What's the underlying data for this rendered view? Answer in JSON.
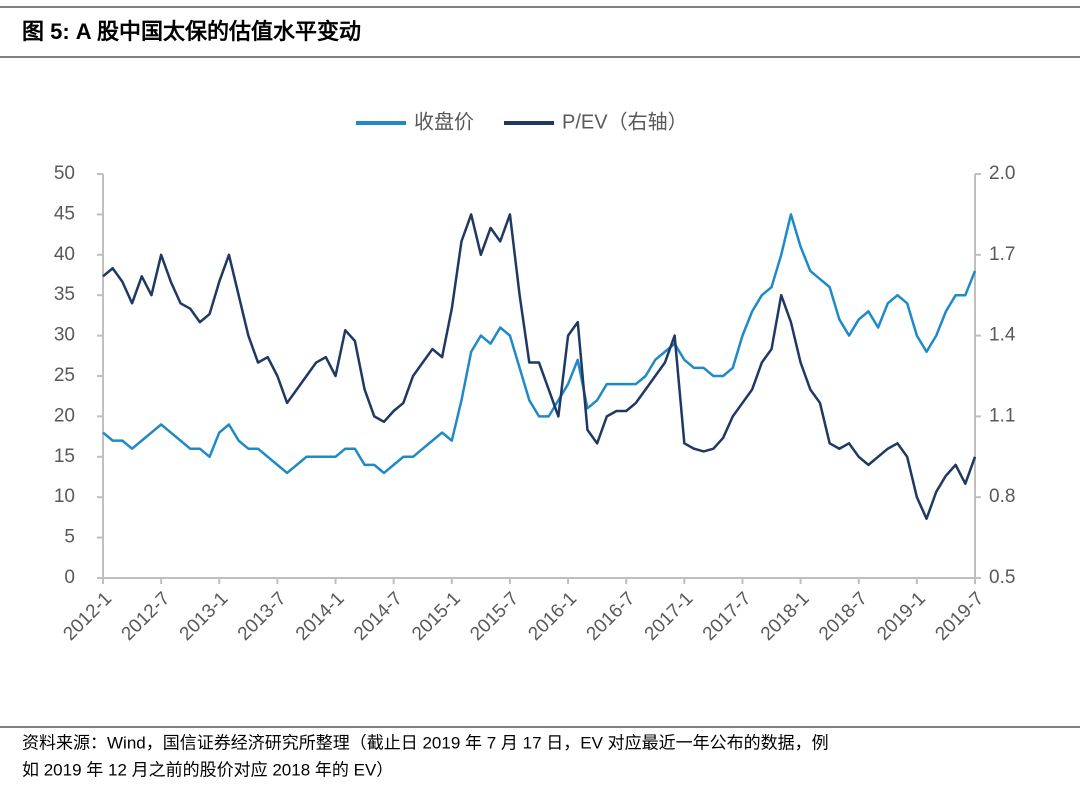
{
  "header": {
    "title": "图 5:  A 股中国太保的估值水平变动"
  },
  "chart_data": {
    "type": "line",
    "categories": [
      "2012-1",
      null,
      null,
      null,
      null,
      null,
      "2012-7",
      null,
      null,
      null,
      null,
      null,
      "2013-1",
      null,
      null,
      null,
      null,
      null,
      "2013-7",
      null,
      null,
      null,
      null,
      null,
      "2014-1",
      null,
      null,
      null,
      null,
      null,
      "2014-7",
      null,
      null,
      null,
      null,
      null,
      "2015-1",
      null,
      null,
      null,
      null,
      null,
      "2015-7",
      null,
      null,
      null,
      null,
      null,
      "2016-1",
      null,
      null,
      null,
      null,
      null,
      "2016-7",
      null,
      null,
      null,
      null,
      null,
      "2017-1",
      null,
      null,
      null,
      null,
      null,
      "2017-7",
      null,
      null,
      null,
      null,
      null,
      "2018-1",
      null,
      null,
      null,
      null,
      null,
      "2018-7",
      null,
      null,
      null,
      null,
      null,
      "2019-1",
      null,
      null,
      null,
      null,
      null,
      "2019-7"
    ],
    "series": [
      {
        "name": "收盘价",
        "color": "#1f8ac8",
        "values": [
          18,
          17,
          17,
          16,
          17,
          18,
          19,
          18,
          17,
          16,
          16,
          15,
          18,
          19,
          17,
          16,
          16,
          15,
          14,
          13,
          14,
          15,
          15,
          15,
          15,
          16,
          16,
          14,
          14,
          13,
          14,
          15,
          15,
          16,
          17,
          18,
          17,
          22,
          28,
          30,
          29,
          31,
          30,
          26,
          22,
          20,
          20,
          22,
          24,
          27,
          21,
          22,
          24,
          24,
          24,
          24,
          25,
          27,
          28,
          29,
          27,
          26,
          26,
          25,
          25,
          26,
          30,
          33,
          35,
          36,
          40,
          45,
          41,
          38,
          37,
          36,
          32,
          30,
          32,
          33,
          31,
          34,
          35,
          34,
          30,
          28,
          30,
          33,
          35,
          35,
          38
        ]
      },
      {
        "name": "P/EV（右轴）",
        "color": "#1f3864",
        "axis": "y2",
        "values": [
          1.62,
          1.65,
          1.6,
          1.52,
          1.62,
          1.55,
          1.7,
          1.6,
          1.52,
          1.5,
          1.45,
          1.48,
          1.6,
          1.7,
          1.55,
          1.4,
          1.3,
          1.32,
          1.25,
          1.15,
          1.2,
          1.25,
          1.3,
          1.32,
          1.25,
          1.42,
          1.38,
          1.2,
          1.1,
          1.08,
          1.12,
          1.15,
          1.25,
          1.3,
          1.35,
          1.32,
          1.5,
          1.75,
          1.85,
          1.7,
          1.8,
          1.75,
          1.85,
          1.55,
          1.3,
          1.3,
          1.2,
          1.1,
          1.4,
          1.45,
          1.05,
          1.0,
          1.1,
          1.12,
          1.12,
          1.15,
          1.2,
          1.25,
          1.3,
          1.4,
          1.0,
          0.98,
          0.97,
          0.98,
          1.02,
          1.1,
          1.15,
          1.2,
          1.3,
          1.35,
          1.55,
          1.45,
          1.3,
          1.2,
          1.15,
          1.0,
          0.98,
          1.0,
          0.95,
          0.92,
          0.95,
          0.98,
          1.0,
          0.95,
          0.8,
          0.72,
          0.82,
          0.88,
          0.92,
          0.85,
          0.95
        ]
      }
    ],
    "ylim": [
      0,
      50
    ],
    "yticks": [
      0,
      5,
      10,
      15,
      20,
      25,
      30,
      35,
      40,
      45,
      50
    ],
    "y2lim": [
      0.5,
      2
    ],
    "y2ticks": [
      0.5,
      0.8,
      1.1,
      1.4,
      1.7,
      {
        "value": 2,
        "label": "2.0"
      }
    ],
    "legend": "top"
  },
  "footer": {
    "source": "资料来源：Wind，国信证券经济研究所整理（截止日 2019 年 7 月 17 日，EV 对应最近一年公布的数据，例",
    "source2": "如 2019 年 12 月之前的股价对应 2018 年的 EV）"
  }
}
